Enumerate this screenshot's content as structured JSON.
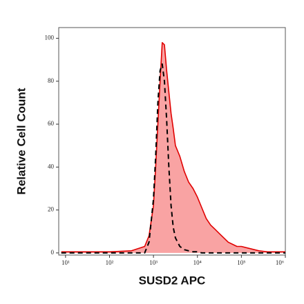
{
  "chart_data": {
    "type": "histogram-overlay",
    "x_label": "SUSD2 APC",
    "y_label": "Relative Cell Count",
    "x_log": true,
    "xlim": [
      7,
      1000000
    ],
    "ylim": [
      -1,
      105
    ],
    "xticks": [
      {
        "value": 10,
        "label": "10¹"
      },
      {
        "value": 100,
        "label": "10²"
      },
      {
        "value": 1000,
        "label": "10³"
      },
      {
        "value": 10000,
        "label": "10⁴"
      },
      {
        "value": 100000,
        "label": "10⁵"
      },
      {
        "value": 1000000,
        "label": "10⁶"
      }
    ],
    "yticks": [
      0,
      20,
      40,
      60,
      80,
      100
    ],
    "x": [
      8,
      32,
      100,
      316,
      631,
      794,
      1000,
      1122,
      1259,
      1413,
      1585,
      1778,
      1995,
      2239,
      2512,
      2818,
      3162,
      3981,
      5012,
      6310,
      7943,
      10000,
      12589,
      15849,
      19953,
      25119,
      31623,
      39811,
      50119,
      63096,
      79433,
      100000,
      158489,
      251189,
      398107,
      1000000
    ],
    "series": [
      {
        "color": "#e00000",
        "fill": "#f9a3a3",
        "dashed": false,
        "values": [
          0.5,
          0.5,
          0.5,
          1,
          3,
          8,
          22,
          40,
          60,
          80,
          98,
          97,
          85,
          75,
          65,
          58,
          50,
          45,
          38,
          33,
          30,
          26,
          21,
          16,
          13,
          11,
          9,
          7,
          5,
          4,
          3,
          3,
          2,
          1,
          0.5,
          0.5
        ]
      },
      {
        "color": "#000000",
        "fill": "none",
        "dashed": true,
        "values": [
          0,
          0,
          0,
          0,
          0,
          5,
          25,
          45,
          70,
          85,
          88,
          80,
          62,
          40,
          22,
          12,
          7,
          3,
          1.5,
          1,
          0.5,
          0.5,
          0,
          0,
          0,
          0,
          0,
          0,
          0,
          0,
          0,
          0,
          0,
          0,
          0,
          0
        ]
      }
    ]
  }
}
